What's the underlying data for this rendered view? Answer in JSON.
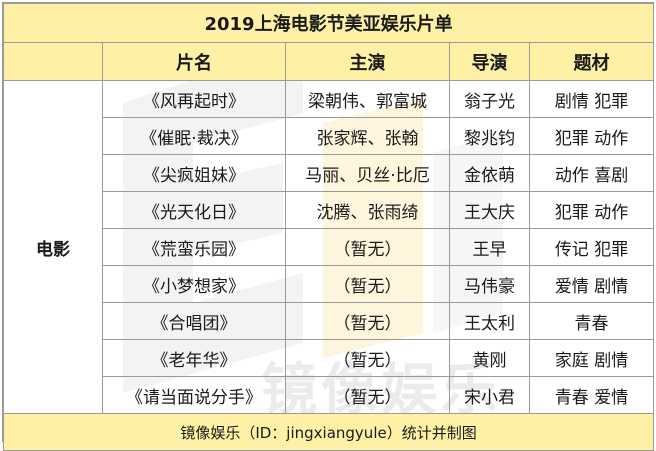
{
  "title": "2019上海电影节美亚娱乐片单",
  "headers": [
    "片名",
    "主演",
    "导演",
    "题材"
  ],
  "category": "电影",
  "rows": [
    {
      "title": "《风再起时》",
      "cast": "梁朝伟、郭富城",
      "director": "翁子光",
      "genre": "剧情 犯罪"
    },
    {
      "title": "《催眠·裁决》",
      "cast": "张家辉、张翰",
      "director": "黎兆钧",
      "genre": "犯罪 动作"
    },
    {
      "title": "《尖疯姐妹》",
      "cast": "马丽、贝丝·比厄",
      "director": "金依萌",
      "genre": "动作 喜剧"
    },
    {
      "title": "《光天化日》",
      "cast": "沈腾、张雨绮",
      "director": "王大庆",
      "genre": "犯罪 动作"
    },
    {
      "title": "《荒蛮乐园》",
      "cast": "（暂无）",
      "director": "王早",
      "genre": "传记 犯罪"
    },
    {
      "title": "《小梦想家》",
      "cast": "（暂无）",
      "director": "马伟豪",
      "genre": "爱情 剧情"
    },
    {
      "title": "《合唱团》",
      "cast": "（暂无）",
      "director": "王太利",
      "genre": "青春"
    },
    {
      "title": "《老年华》",
      "cast": "（暂无）",
      "director": "黄刚",
      "genre": "家庭 剧情"
    },
    {
      "title": "《请当面说分手》",
      "cast": "（暂无）",
      "director": "宋小君",
      "genre": "青春 爱情"
    }
  ],
  "footer": "镜像娱乐（ID：jingxiangyule）统计并制图",
  "watermark": "镜像娱乐",
  "colors": {
    "header_bg": "#fef1a6",
    "border": "#9a9a9a"
  }
}
